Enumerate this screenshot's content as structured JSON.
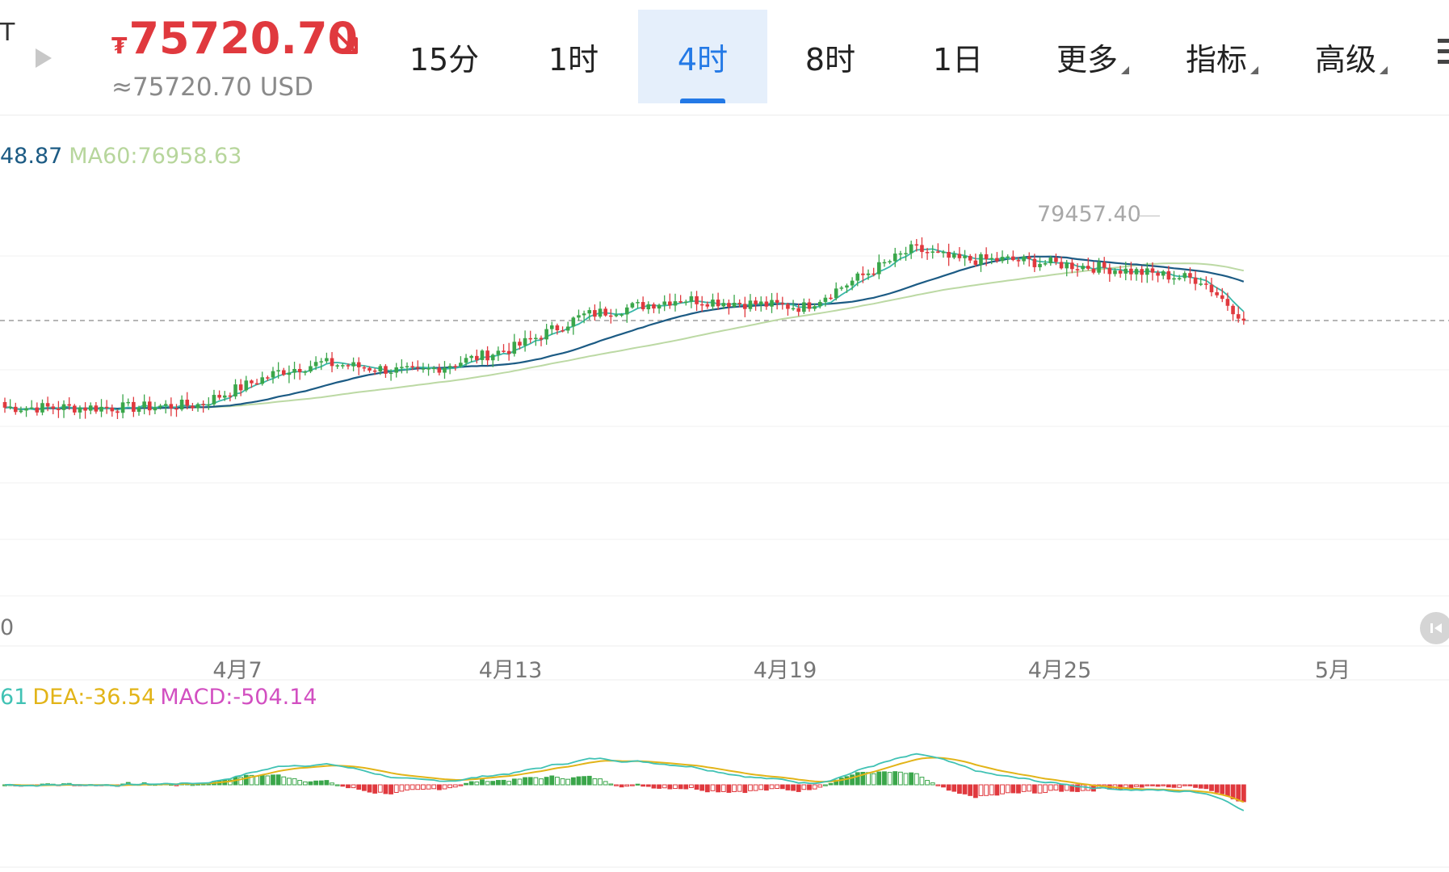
{
  "header": {
    "edge_glyph": "T",
    "currency_symbol": "₮",
    "price": "75720.70",
    "price_usd": "≈75720.70 USD",
    "price_color": "#e0393e",
    "trend": "down-right-arrow-icon"
  },
  "tabs": [
    {
      "label": "15分",
      "active": false
    },
    {
      "label": "1时",
      "active": false
    },
    {
      "label": "4时",
      "active": true
    },
    {
      "label": "8时",
      "active": false
    },
    {
      "label": "1日",
      "active": false
    },
    {
      "label": "更多",
      "active": false,
      "dropdown": true
    },
    {
      "label": "指标",
      "active": false,
      "dropdown": true
    },
    {
      "label": "高级",
      "active": false,
      "dropdown": true
    }
  ],
  "legend": {
    "ma30": "48.87",
    "ma60": "MA60:76958.63"
  },
  "macd_legend": {
    "dif": "61",
    "dea": "DEA:-36.54",
    "macd": "MACD:-504.14"
  },
  "price_axis_stub": "0",
  "peak_label": "79457.40",
  "dates": [
    "4月7",
    "4月13",
    "4月19",
    "4月25",
    "5月"
  ],
  "colors": {
    "up": "#3aa64a",
    "down": "#e0393e",
    "ma_fast": "#39b7a9",
    "ma_mid": "#1c5b84",
    "ma_slow": "#bcd9a4",
    "dif": "#40c2b4",
    "dea": "#e2b418",
    "active_tab": "#2379e6"
  },
  "chart_data": {
    "type": "candlestick",
    "interval": "4时",
    "current_price": 75720.7,
    "peak_value": 79457.4,
    "x_tick_labels": [
      "4月7",
      "4月13",
      "4月19",
      "4月25",
      "5月"
    ],
    "trend_x": [
      0.0,
      0.09,
      0.14,
      0.2,
      0.23,
      0.3,
      0.37,
      0.42,
      0.49,
      0.58,
      0.66,
      0.69,
      0.73,
      0.8,
      0.9
    ],
    "trend_y": [
      72600,
      72600,
      72700,
      73900,
      74200,
      73850,
      74750,
      75900,
      76500,
      76200,
      78300,
      77900,
      77900,
      77600,
      77000
    ],
    "ma60_series": {
      "name": "MA60",
      "last": 76958.63
    },
    "macd": {
      "DEA": -36.54,
      "MACD": -504.14
    }
  }
}
